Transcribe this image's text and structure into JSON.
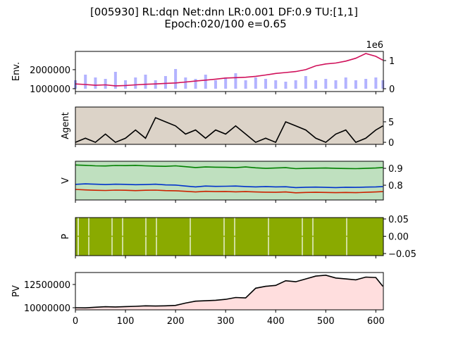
{
  "title": "[005930] RL:dqn Net:dnn LR:0.001 DF:0.9 TU:[1,1]",
  "subtitle": "Epoch:020/100 e=0.65",
  "chart_data": [
    {
      "type": "line",
      "ylabel": "Env.",
      "yaxis": "left",
      "background": "#ffffff",
      "x": [
        0,
        20,
        40,
        60,
        80,
        100,
        120,
        140,
        160,
        180,
        200,
        220,
        240,
        260,
        280,
        300,
        320,
        340,
        360,
        380,
        400,
        420,
        440,
        460,
        480,
        500,
        520,
        540,
        560,
        580,
        600,
        614
      ],
      "xlim": [
        0,
        615
      ],
      "xticks": [
        0,
        100,
        200,
        300,
        400,
        500,
        600
      ],
      "ylim": [
        850000,
        2960000
      ],
      "yticks": [
        1000000,
        2000000
      ],
      "y2lim": [
        -0.1,
        1.325
      ],
      "y2ticks": [
        0,
        1
      ],
      "offset_label": "1e6",
      "series": [
        {
          "kind": "bar",
          "axis": "y2",
          "color": "#8080ff",
          "values": [
            0.3,
            0.5,
            0.4,
            0.35,
            0.6,
            0.3,
            0.4,
            0.5,
            0.3,
            0.45,
            0.7,
            0.4,
            0.35,
            0.5,
            0.3,
            0.4,
            0.55,
            0.3,
            0.4,
            0.35,
            0.3,
            0.25,
            0.3,
            0.45,
            0.3,
            0.35,
            0.3,
            0.4,
            0.3,
            0.35,
            0.4,
            0.3
          ]
        },
        {
          "kind": "line",
          "color": "#d0105a",
          "values": [
            1250000,
            1220000,
            1180000,
            1200000,
            1150000,
            1170000,
            1200000,
            1230000,
            1250000,
            1280000,
            1300000,
            1350000,
            1400000,
            1450000,
            1500000,
            1560000,
            1580000,
            1600000,
            1650000,
            1720000,
            1800000,
            1850000,
            1900000,
            2000000,
            2200000,
            2300000,
            2350000,
            2450000,
            2600000,
            2850000,
            2700000,
            2500000
          ]
        }
      ]
    },
    {
      "type": "line",
      "ylabel": "Agent",
      "yaxis": "right",
      "background": "#dcd3c8",
      "x": [
        0,
        20,
        40,
        60,
        80,
        100,
        120,
        140,
        160,
        180,
        200,
        220,
        240,
        260,
        280,
        300,
        320,
        340,
        360,
        380,
        400,
        420,
        440,
        460,
        480,
        500,
        520,
        540,
        560,
        580,
        600,
        614
      ],
      "xlim": [
        0,
        615
      ],
      "xticks": [
        0,
        100,
        200,
        300,
        400,
        500,
        600
      ],
      "ylim": [
        -0.5,
        8.6
      ],
      "yticks": [
        0,
        5
      ],
      "series": [
        {
          "kind": "line",
          "color": "#000000",
          "values": [
            0,
            1,
            0,
            2,
            0,
            1,
            3,
            1,
            6,
            5,
            4,
            2,
            3,
            1,
            3,
            2,
            4,
            2,
            0,
            1,
            0,
            5,
            4,
            3,
            1,
            0,
            2,
            3,
            0,
            1,
            3,
            4
          ]
        }
      ]
    },
    {
      "type": "line",
      "ylabel": "V",
      "yaxis": "right",
      "background": "#bfe0bf",
      "x": [
        0,
        20,
        40,
        60,
        80,
        100,
        120,
        140,
        160,
        180,
        200,
        220,
        240,
        260,
        280,
        300,
        320,
        340,
        360,
        380,
        400,
        420,
        440,
        460,
        480,
        500,
        520,
        540,
        560,
        580,
        600,
        614
      ],
      "xlim": [
        0,
        615
      ],
      "xticks": [
        0,
        100,
        200,
        300,
        400,
        500,
        600
      ],
      "ylim": [
        0.7125,
        0.942
      ],
      "yticks": [
        0.8,
        0.9
      ],
      "series": [
        {
          "kind": "line",
          "color": "#008000",
          "values": [
            0.92,
            0.918,
            0.915,
            0.914,
            0.917,
            0.916,
            0.918,
            0.915,
            0.913,
            0.912,
            0.915,
            0.91,
            0.905,
            0.908,
            0.907,
            0.906,
            0.904,
            0.908,
            0.903,
            0.9,
            0.902,
            0.904,
            0.898,
            0.9,
            0.901,
            0.902,
            0.9,
            0.899,
            0.898,
            0.9,
            0.902,
            0.905
          ]
        },
        {
          "kind": "line",
          "color": "#0033cc",
          "values": [
            0.805,
            0.808,
            0.806,
            0.804,
            0.806,
            0.805,
            0.803,
            0.804,
            0.806,
            0.802,
            0.801,
            0.795,
            0.79,
            0.795,
            0.793,
            0.794,
            0.795,
            0.792,
            0.79,
            0.792,
            0.79,
            0.791,
            0.786,
            0.788,
            0.789,
            0.787,
            0.786,
            0.788,
            0.787,
            0.789,
            0.79,
            0.792
          ]
        },
        {
          "kind": "line",
          "color": "#cc2200",
          "values": [
            0.775,
            0.772,
            0.77,
            0.769,
            0.771,
            0.77,
            0.768,
            0.77,
            0.771,
            0.768,
            0.767,
            0.764,
            0.76,
            0.764,
            0.762,
            0.763,
            0.761,
            0.762,
            0.76,
            0.759,
            0.758,
            0.76,
            0.755,
            0.757,
            0.758,
            0.757,
            0.756,
            0.757,
            0.756,
            0.758,
            0.76,
            0.762
          ]
        }
      ]
    },
    {
      "type": "line",
      "ylabel": "P",
      "yaxis": "right",
      "background": "#8aaa00",
      "x": [
        0,
        20,
        40,
        60,
        80,
        100,
        120,
        140,
        160,
        180,
        200,
        220,
        240,
        260,
        280,
        300,
        320,
        340,
        360,
        380,
        400,
        420,
        440,
        460,
        480,
        500,
        520,
        540,
        560,
        580,
        600,
        614
      ],
      "xlim": [
        0,
        615
      ],
      "xticks": [
        0,
        100,
        200,
        300,
        400,
        500,
        600
      ],
      "ylim": [
        -0.056,
        0.054
      ],
      "yticks": [
        0.05,
        {
          "value": 0,
          "label": "0.00"
        },
        {
          "value": -0.05,
          "label": "−0.05"
        }
      ],
      "series": [
        {
          "kind": "line",
          "color": "#8aaa00",
          "values": [
            0,
            0,
            0,
            0,
            0,
            0,
            0,
            0,
            0,
            0,
            0,
            0,
            0,
            0,
            0,
            0,
            0,
            0,
            0,
            0,
            0,
            0,
            0,
            0,
            0,
            0,
            0,
            0,
            0,
            0,
            0,
            0
          ]
        }
      ]
    },
    {
      "type": "line",
      "ylabel": "PV",
      "yaxis": "left",
      "background": "#ffffff",
      "x": [
        0,
        20,
        40,
        60,
        80,
        100,
        120,
        140,
        160,
        180,
        200,
        220,
        240,
        260,
        280,
        300,
        320,
        340,
        360,
        380,
        400,
        420,
        440,
        460,
        480,
        500,
        520,
        540,
        560,
        580,
        600,
        614
      ],
      "xlim": [
        0,
        615
      ],
      "xticks": [
        0,
        100,
        200,
        300,
        400,
        500,
        600
      ],
      "ylim": [
        9770000,
        13790000
      ],
      "yticks": [
        10000000,
        12500000
      ],
      "series": [
        {
          "kind": "line",
          "color": "#000000",
          "fill": "#ffdede",
          "values": [
            10000000,
            9980000,
            10050000,
            10100000,
            10080000,
            10120000,
            10150000,
            10200000,
            10180000,
            10200000,
            10250000,
            10500000,
            10700000,
            10750000,
            10800000,
            10900000,
            11100000,
            11050000,
            12100000,
            12300000,
            12400000,
            12900000,
            12800000,
            13100000,
            13400000,
            13500000,
            13200000,
            13100000,
            13000000,
            13300000,
            13250000,
            12300000
          ]
        }
      ]
    }
  ]
}
